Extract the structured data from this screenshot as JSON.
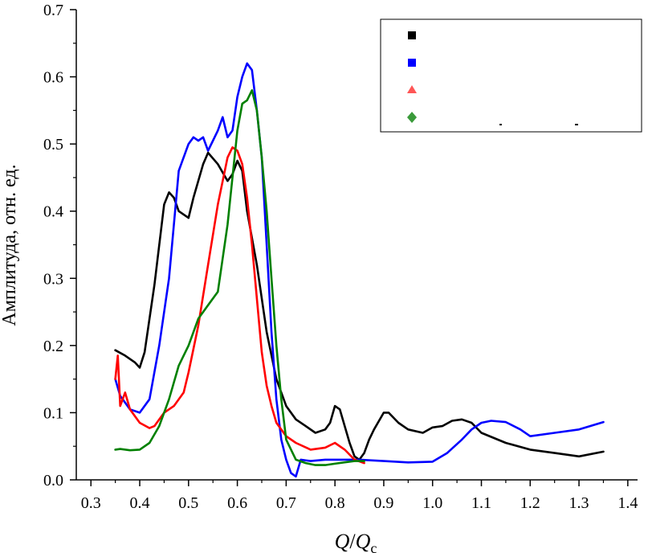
{
  "chart_data": {
    "type": "line",
    "xlabel_main": "Q",
    "xlabel_sep": "/",
    "xlabel_sub_base": "Q",
    "xlabel_sub": "c",
    "ylabel": "Амплитуда, отн. ед.",
    "xlim": [
      0.27,
      1.42
    ],
    "ylim": [
      0,
      0.7
    ],
    "xticks": [
      "0.3",
      "0.4",
      "0.5",
      "0.6",
      "0.7",
      "0.8",
      "0.9",
      "1.0",
      "1.1",
      "1.2",
      "1.3",
      "1.4"
    ],
    "yticks": [
      "0.0",
      "0.1",
      "0.2",
      "0.3",
      "0.4",
      "0.5",
      "0.6",
      "0.7"
    ],
    "grid": false,
    "legend_position": "top-right",
    "series": [
      {
        "marker": "square",
        "color": "#000000",
        "x": [
          0.35,
          0.37,
          0.39,
          0.4,
          0.41,
          0.43,
          0.45,
          0.46,
          0.47,
          0.48,
          0.5,
          0.51,
          0.53,
          0.54,
          0.56,
          0.58,
          0.59,
          0.6,
          0.61,
          0.62,
          0.64,
          0.66,
          0.68,
          0.7,
          0.72,
          0.74,
          0.76,
          0.78,
          0.79,
          0.8,
          0.81,
          0.82,
          0.83,
          0.84,
          0.85,
          0.86,
          0.87,
          0.88,
          0.9,
          0.91,
          0.93,
          0.95,
          0.98,
          1.0,
          1.02,
          1.04,
          1.06,
          1.08,
          1.1,
          1.15,
          1.2,
          1.25,
          1.3,
          1.35
        ],
        "y": [
          0.193,
          0.185,
          0.175,
          0.167,
          0.19,
          0.29,
          0.41,
          0.428,
          0.42,
          0.4,
          0.39,
          0.42,
          0.47,
          0.487,
          0.47,
          0.445,
          0.455,
          0.475,
          0.46,
          0.4,
          0.32,
          0.22,
          0.15,
          0.11,
          0.09,
          0.08,
          0.07,
          0.075,
          0.085,
          0.11,
          0.105,
          0.08,
          0.055,
          0.035,
          0.03,
          0.04,
          0.06,
          0.075,
          0.1,
          0.1,
          0.085,
          0.075,
          0.07,
          0.078,
          0.08,
          0.088,
          0.09,
          0.085,
          0.07,
          0.055,
          0.045,
          0.04,
          0.035,
          0.042
        ]
      },
      {
        "marker": "square",
        "color": "#0000ff",
        "x": [
          0.35,
          0.36,
          0.38,
          0.4,
          0.42,
          0.44,
          0.46,
          0.48,
          0.5,
          0.51,
          0.52,
          0.53,
          0.54,
          0.55,
          0.56,
          0.57,
          0.58,
          0.59,
          0.6,
          0.61,
          0.62,
          0.63,
          0.64,
          0.65,
          0.66,
          0.67,
          0.68,
          0.69,
          0.7,
          0.71,
          0.72,
          0.73,
          0.75,
          0.78,
          0.8,
          0.85,
          0.9,
          0.95,
          1.0,
          1.03,
          1.06,
          1.08,
          1.1,
          1.12,
          1.15,
          1.18,
          1.2,
          1.25,
          1.3,
          1.35
        ],
        "y": [
          0.15,
          0.125,
          0.105,
          0.1,
          0.12,
          0.2,
          0.3,
          0.46,
          0.5,
          0.51,
          0.505,
          0.51,
          0.49,
          0.505,
          0.52,
          0.54,
          0.51,
          0.52,
          0.57,
          0.6,
          0.62,
          0.61,
          0.55,
          0.48,
          0.35,
          0.22,
          0.12,
          0.06,
          0.03,
          0.01,
          0.005,
          0.03,
          0.028,
          0.03,
          0.03,
          0.03,
          0.028,
          0.026,
          0.027,
          0.04,
          0.06,
          0.075,
          0.085,
          0.088,
          0.086,
          0.075,
          0.065,
          0.07,
          0.075,
          0.086
        ]
      },
      {
        "marker": "triangle",
        "color": "#ff0000",
        "x": [
          0.35,
          0.355,
          0.36,
          0.37,
          0.38,
          0.4,
          0.42,
          0.43,
          0.45,
          0.47,
          0.49,
          0.5,
          0.52,
          0.54,
          0.56,
          0.58,
          0.59,
          0.6,
          0.61,
          0.62,
          0.63,
          0.64,
          0.65,
          0.66,
          0.67,
          0.68,
          0.7,
          0.72,
          0.75,
          0.78,
          0.8,
          0.82,
          0.84,
          0.86
        ],
        "y": [
          0.15,
          0.185,
          0.11,
          0.13,
          0.105,
          0.085,
          0.077,
          0.08,
          0.1,
          0.11,
          0.13,
          0.16,
          0.23,
          0.32,
          0.41,
          0.48,
          0.495,
          0.49,
          0.47,
          0.42,
          0.35,
          0.27,
          0.19,
          0.14,
          0.11,
          0.085,
          0.065,
          0.055,
          0.045,
          0.048,
          0.055,
          0.045,
          0.03,
          0.025
        ]
      },
      {
        "marker": "diamond",
        "color": "#008000",
        "x": [
          0.35,
          0.36,
          0.38,
          0.4,
          0.42,
          0.44,
          0.46,
          0.48,
          0.5,
          0.52,
          0.54,
          0.56,
          0.58,
          0.6,
          0.61,
          0.62,
          0.63,
          0.64,
          0.65,
          0.66,
          0.67,
          0.68,
          0.69,
          0.7,
          0.72,
          0.74,
          0.76,
          0.78,
          0.8,
          0.84,
          0.86
        ],
        "y": [
          0.045,
          0.046,
          0.044,
          0.045,
          0.055,
          0.08,
          0.12,
          0.17,
          0.2,
          0.24,
          0.26,
          0.28,
          0.38,
          0.52,
          0.56,
          0.565,
          0.58,
          0.55,
          0.48,
          0.4,
          0.3,
          0.2,
          0.12,
          0.06,
          0.03,
          0.025,
          0.022,
          0.022,
          0.024,
          0.028,
          0.028
        ]
      }
    ]
  }
}
